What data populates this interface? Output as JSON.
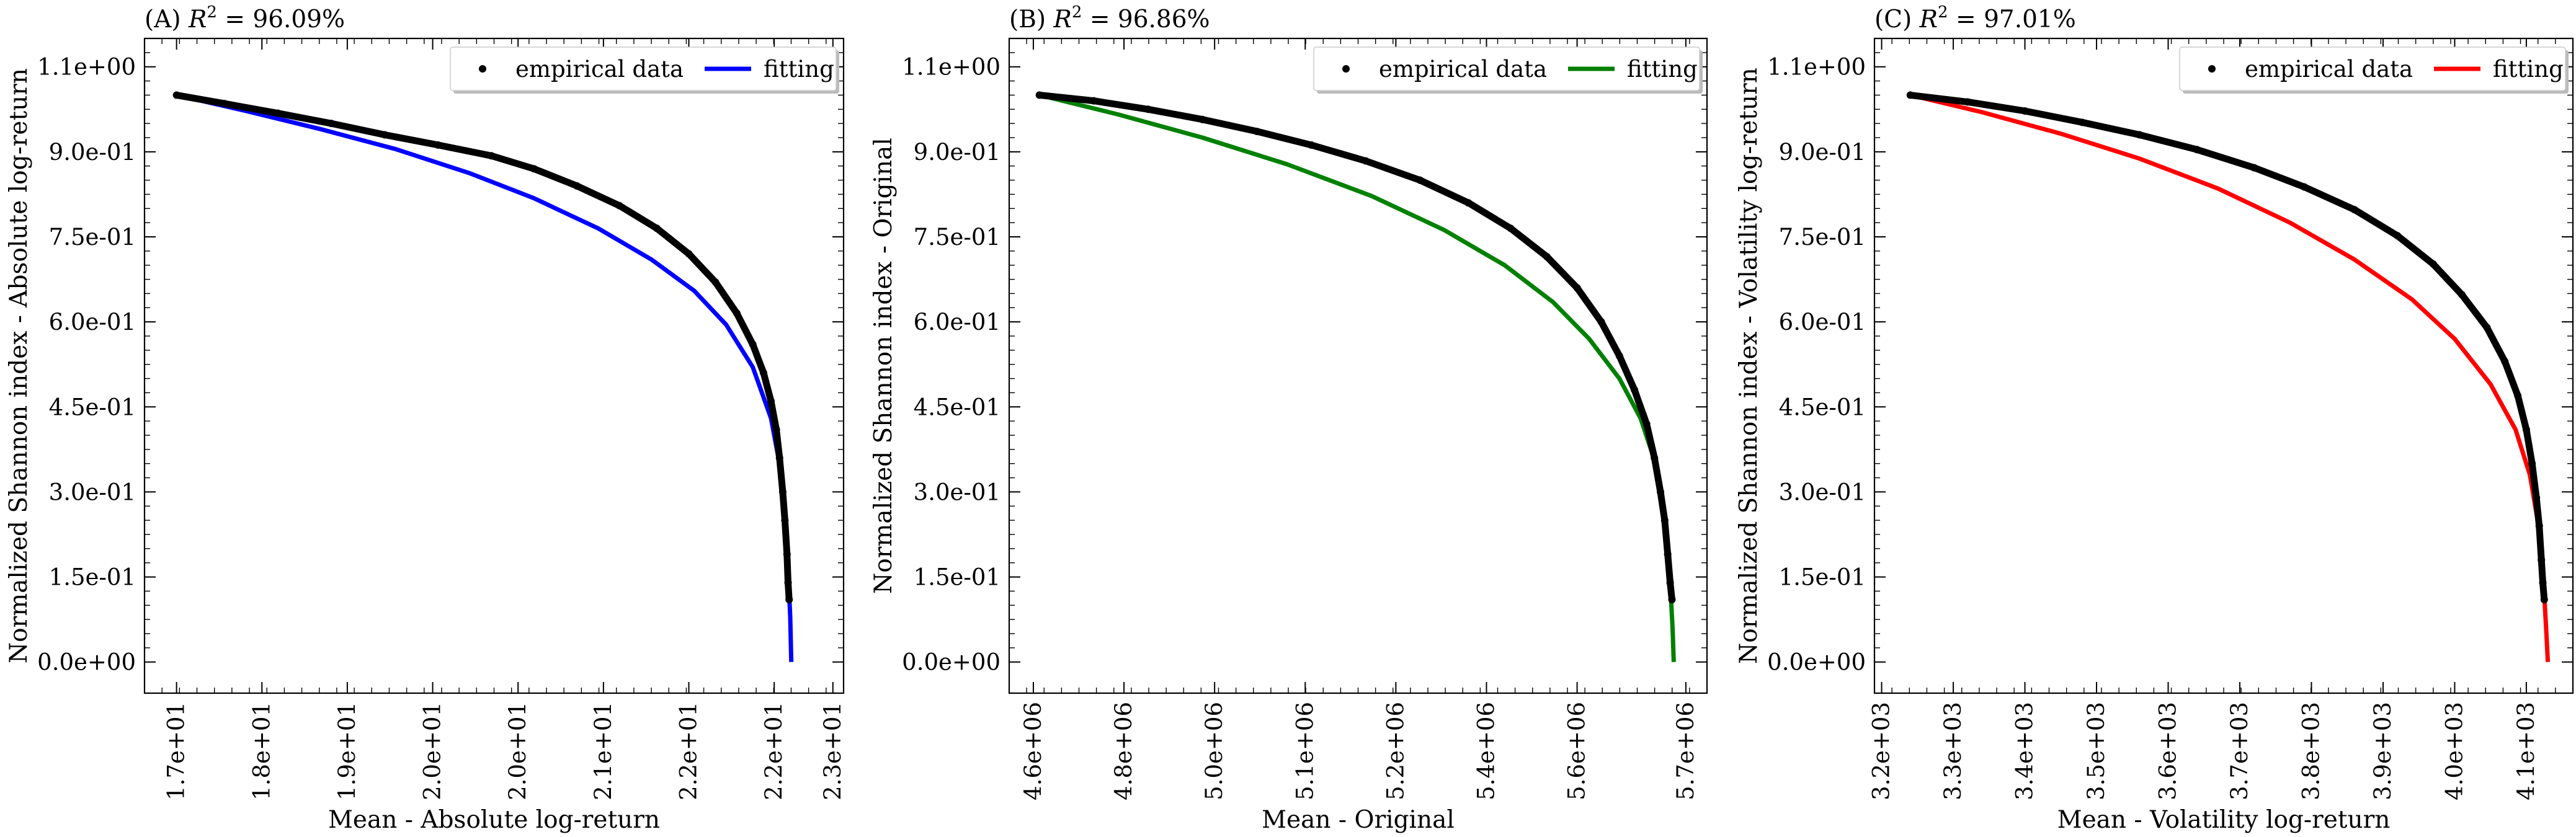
{
  "figure": {
    "background": "#ffffff"
  },
  "chart_data": [
    {
      "panel": "A",
      "type": "scatter",
      "title_prefix": "(A) ",
      "title_r2": "R",
      "title_value": " = 96.09%",
      "xlabel": "Mean - Absolute log-return",
      "ylabel": "Normalized Shannon index - Absolute log-return",
      "xlim": [
        16.55,
        23.1
      ],
      "ylim": [
        -0.055,
        1.1
      ],
      "xticks": [
        17.0,
        18.0,
        19.0,
        20.0,
        21.0,
        22.0,
        23.0
      ],
      "xticklabels": [
        "1.7e+01",
        "1.8e+01",
        "1.9e+01",
        "2.0e+01",
        "2.0e+01",
        "2.1e+01",
        "2.2e+01",
        "2.2e+01",
        "2.3e+01"
      ],
      "xtick_values_for_labels": [
        16.85,
        17.65,
        18.45,
        19.25,
        20.05,
        20.85,
        21.65,
        22.45,
        23.0
      ],
      "yticks": [
        0.0,
        0.15,
        0.3,
        0.45,
        0.6,
        0.75,
        0.9,
        1.05
      ],
      "yticklabels": [
        "0.0e+00",
        "1.5e-01",
        "3.0e-01",
        "4.5e-01",
        "6.0e-01",
        "7.5e-01",
        "9.0e-01",
        "1.1e+00"
      ],
      "legend": {
        "position": "top-right",
        "entries": [
          "empirical data",
          "fitting"
        ]
      },
      "fit_color": "#0000ff",
      "empirical_color": "#000000",
      "series": [
        {
          "name": "empirical data",
          "style": "markers",
          "x": [
            16.85,
            17.3,
            17.8,
            18.3,
            18.8,
            19.3,
            19.8,
            20.2,
            20.6,
            21.0,
            21.35,
            21.65,
            21.9,
            22.1,
            22.25,
            22.35,
            22.42,
            22.47,
            22.5,
            22.53,
            22.55,
            22.57,
            22.58,
            22.59
          ],
          "y": [
            1.0,
            0.985,
            0.968,
            0.95,
            0.93,
            0.912,
            0.893,
            0.87,
            0.84,
            0.805,
            0.765,
            0.72,
            0.67,
            0.615,
            0.56,
            0.51,
            0.46,
            0.41,
            0.36,
            0.3,
            0.25,
            0.19,
            0.14,
            0.11
          ]
        },
        {
          "name": "fitting",
          "style": "line",
          "x": [
            16.85,
            17.5,
            18.2,
            18.9,
            19.6,
            20.2,
            20.8,
            21.3,
            21.7,
            22.0,
            22.25,
            22.42,
            22.52,
            22.57,
            22.6,
            22.61
          ],
          "y": [
            1.0,
            0.972,
            0.94,
            0.905,
            0.862,
            0.818,
            0.765,
            0.71,
            0.655,
            0.595,
            0.52,
            0.43,
            0.33,
            0.2,
            0.08,
            0.0
          ]
        }
      ]
    },
    {
      "panel": "B",
      "type": "scatter",
      "title_prefix": "(B) ",
      "title_r2": "R",
      "title_value": " = 96.86%",
      "xlabel": "Mean - Original",
      "ylabel": "Normalized Shannon index - Original",
      "xlim": [
        4580000,
        5735000
      ],
      "ylim": [
        -0.055,
        1.1
      ],
      "xticklabels": [
        "4.6e+06",
        "4.8e+06",
        "5.0e+06",
        "5.1e+06",
        "5.2e+06",
        "5.4e+06",
        "5.6e+06",
        "5.7e+06"
      ],
      "xtick_values_for_labels": [
        4620000,
        4770000,
        4920000,
        5070000,
        5220000,
        5370000,
        5520000,
        5700000
      ],
      "yticklabels": [
        "0.0e+00",
        "1.5e-01",
        "3.0e-01",
        "4.5e-01",
        "6.0e-01",
        "7.5e-01",
        "9.0e-01",
        "1.1e+00"
      ],
      "yticks": [
        0.0,
        0.15,
        0.3,
        0.45,
        0.6,
        0.75,
        0.9,
        1.05
      ],
      "legend": {
        "position": "top-right",
        "entries": [
          "empirical data",
          "fitting"
        ]
      },
      "fit_color": "#008000",
      "empirical_color": "#000000",
      "series": [
        {
          "name": "empirical data",
          "style": "markers",
          "x": [
            4630000,
            4720000,
            4810000,
            4900000,
            4990000,
            5080000,
            5170000,
            5260000,
            5340000,
            5410000,
            5470000,
            5520000,
            5560000,
            5590000,
            5615000,
            5635000,
            5648000,
            5658000,
            5665000,
            5670000,
            5674000,
            5677000
          ],
          "y": [
            1.0,
            0.99,
            0.975,
            0.957,
            0.936,
            0.912,
            0.884,
            0.85,
            0.81,
            0.765,
            0.715,
            0.66,
            0.6,
            0.54,
            0.48,
            0.42,
            0.36,
            0.3,
            0.25,
            0.19,
            0.14,
            0.11
          ]
        },
        {
          "name": "fitting",
          "style": "line",
          "x": [
            4630000,
            4760000,
            4900000,
            5040000,
            5180000,
            5300000,
            5400000,
            5480000,
            5540000,
            5590000,
            5625000,
            5650000,
            5665000,
            5673000,
            5678000,
            5680000
          ],
          "y": [
            1.0,
            0.966,
            0.925,
            0.878,
            0.822,
            0.762,
            0.7,
            0.635,
            0.57,
            0.5,
            0.43,
            0.35,
            0.26,
            0.16,
            0.06,
            0.0
          ]
        }
      ]
    },
    {
      "panel": "C",
      "type": "scatter",
      "title_prefix": "(C) ",
      "title_r2": "R",
      "title_value": " = 97.01%",
      "xlabel": "Mean - Volatility log-return",
      "ylabel": "Normalized Shannon index - Volatility log-return",
      "xlim": [
        3190,
        4165
      ],
      "ylim": [
        -0.055,
        1.1
      ],
      "xticklabels": [
        "3.2e+03",
        "3.3e+03",
        "3.4e+03",
        "3.5e+03",
        "3.6e+03",
        "3.7e+03",
        "3.8e+03",
        "3.9e+03",
        "4.0e+03",
        "4.1e+03"
      ],
      "xtick_values_for_labels": [
        3200,
        3300,
        3400,
        3500,
        3600,
        3700,
        3800,
        3900,
        4000,
        4100
      ],
      "yticklabels": [
        "0.0e+00",
        "1.5e-01",
        "3.0e-01",
        "4.5e-01",
        "6.0e-01",
        "7.5e-01",
        "9.0e-01",
        "1.1e+00"
      ],
      "yticks": [
        0.0,
        0.15,
        0.3,
        0.45,
        0.6,
        0.75,
        0.9,
        1.05
      ],
      "legend": {
        "position": "top-right",
        "entries": [
          "empirical data",
          "fitting"
        ]
      },
      "fit_color": "#ff0000",
      "empirical_color": "#000000",
      "series": [
        {
          "name": "empirical data",
          "style": "markers",
          "x": [
            3240,
            3320,
            3400,
            3480,
            3560,
            3640,
            3720,
            3790,
            3860,
            3920,
            3970,
            4010,
            4045,
            4070,
            4088,
            4100,
            4108,
            4114,
            4118,
            4121,
            4123,
            4125
          ],
          "y": [
            1.0,
            0.988,
            0.972,
            0.952,
            0.93,
            0.904,
            0.872,
            0.838,
            0.798,
            0.752,
            0.702,
            0.648,
            0.59,
            0.53,
            0.47,
            0.41,
            0.35,
            0.29,
            0.24,
            0.18,
            0.14,
            0.11
          ]
        },
        {
          "name": "fitting",
          "style": "line",
          "x": [
            3240,
            3340,
            3450,
            3560,
            3670,
            3770,
            3860,
            3940,
            4000,
            4050,
            4085,
            4105,
            4117,
            4124,
            4128,
            4130
          ],
          "y": [
            1.0,
            0.97,
            0.932,
            0.888,
            0.835,
            0.775,
            0.71,
            0.64,
            0.57,
            0.49,
            0.41,
            0.33,
            0.24,
            0.14,
            0.05,
            0.0
          ]
        }
      ]
    }
  ]
}
